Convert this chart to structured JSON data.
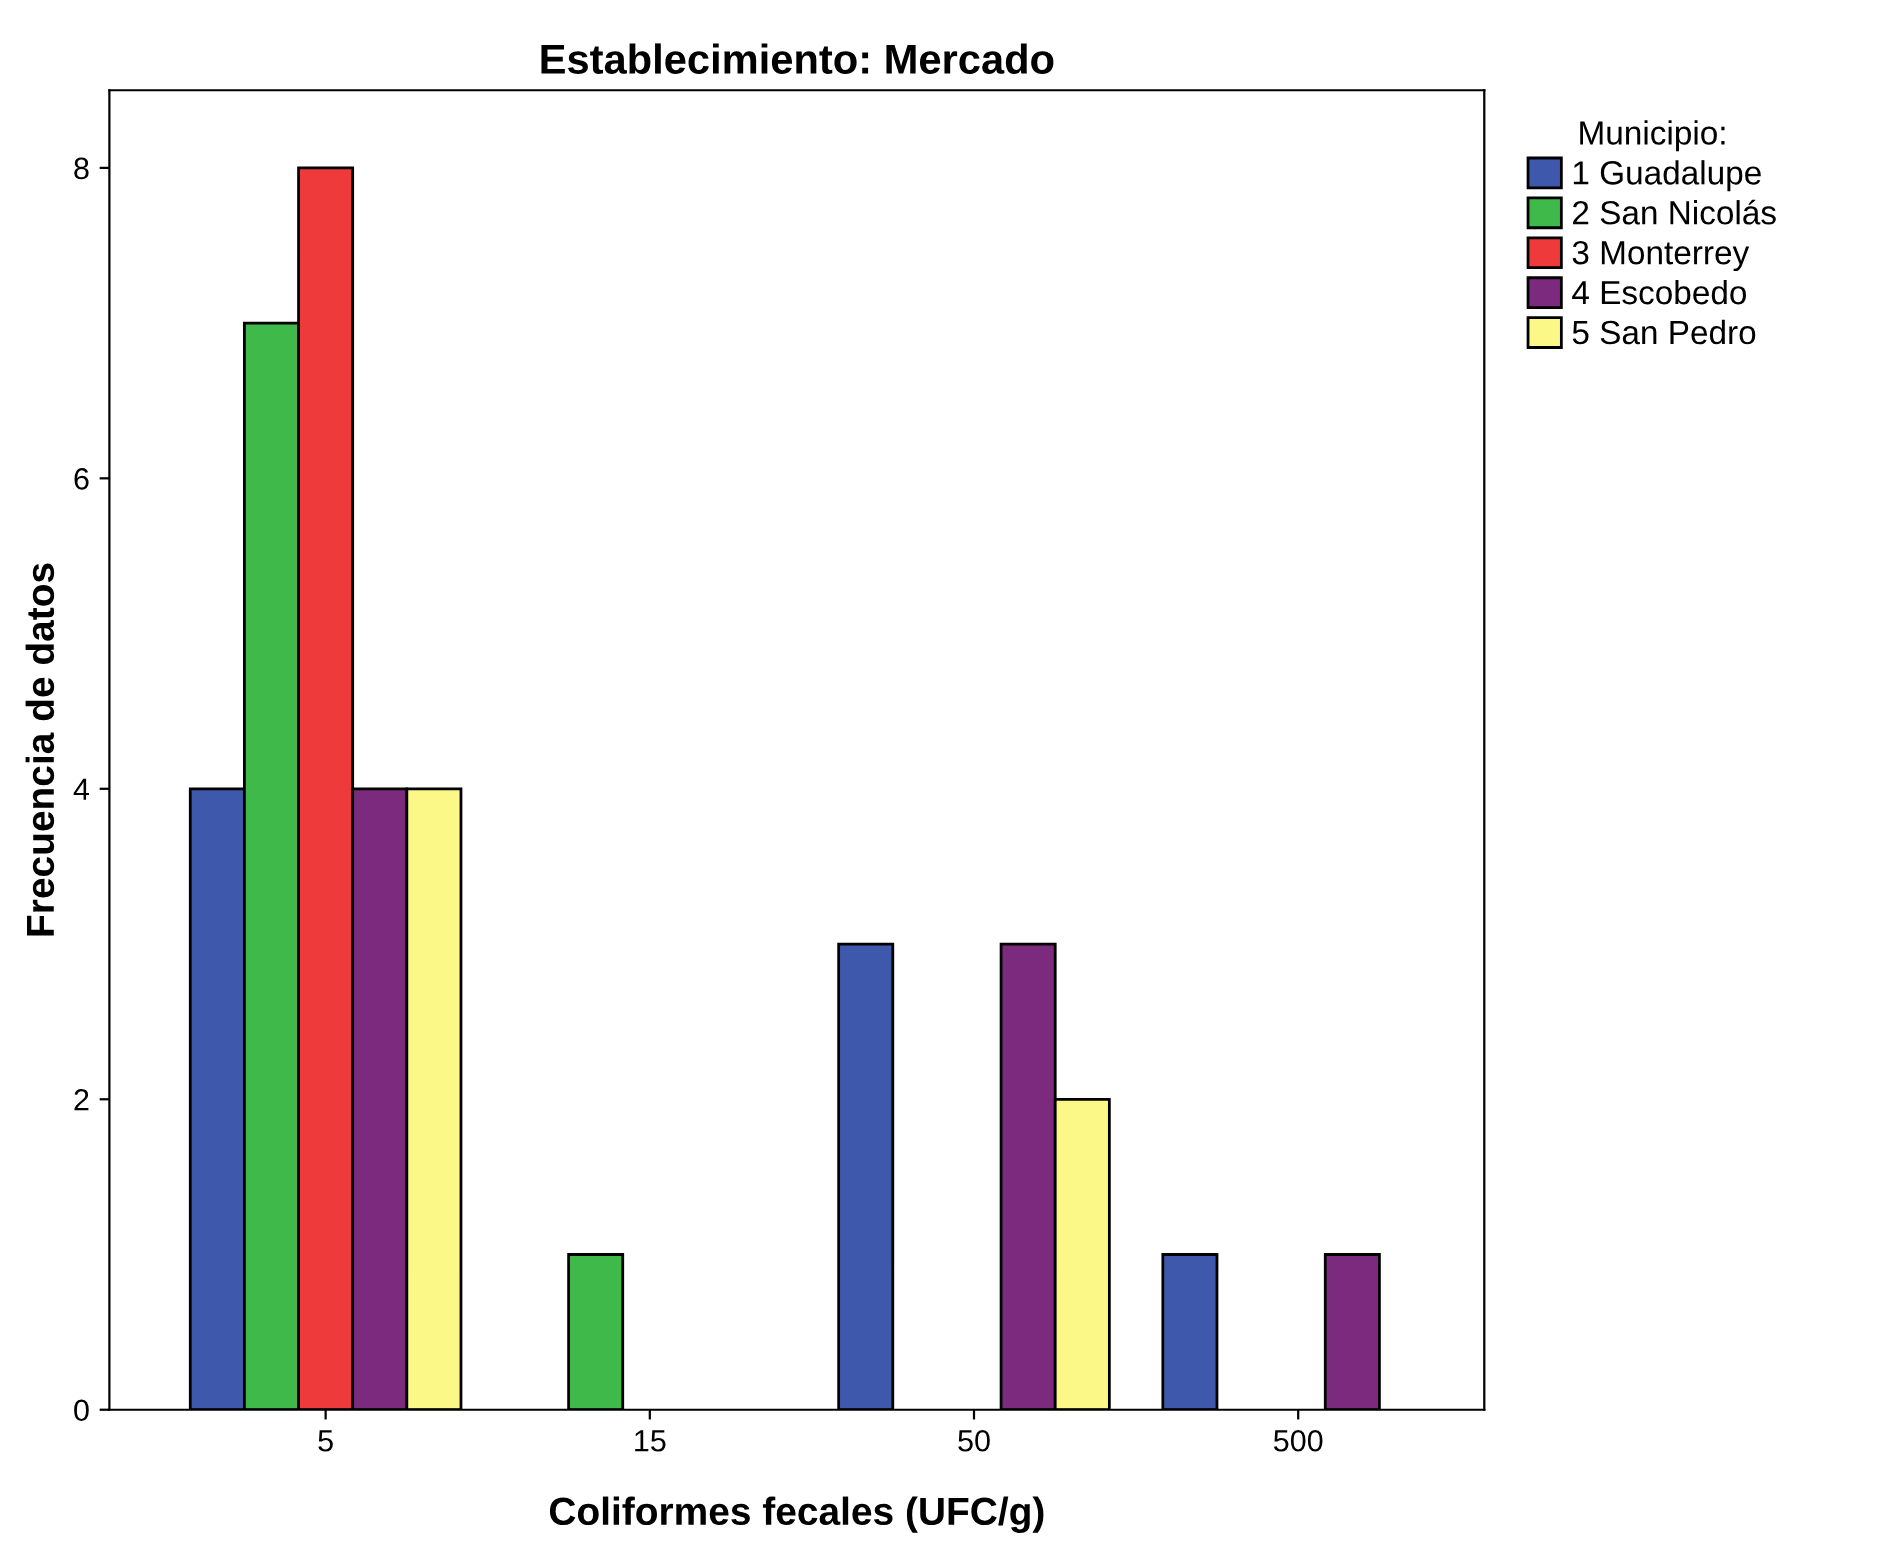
{
  "chart_data": {
    "type": "bar",
    "title": "Establecimiento: Mercado",
    "xlabel": "Coliformes fecales (UFC/g)",
    "ylabel": "Frecuencia de datos",
    "legend_title": "Municipio:",
    "categories": [
      "5",
      "15",
      "50",
      "500"
    ],
    "series": [
      {
        "name": "1 Guadalupe",
        "color": "#3e58ac",
        "values": [
          4,
          0,
          3,
          1
        ]
      },
      {
        "name": "2 San Nicolás",
        "color": "#3fb94a",
        "values": [
          7,
          1,
          0,
          0
        ]
      },
      {
        "name": "3 Monterrey",
        "color": "#ee3a3b",
        "values": [
          8,
          0,
          0,
          0
        ]
      },
      {
        "name": "4 Escobedo",
        "color": "#7b2a7e",
        "values": [
          4,
          0,
          3,
          1
        ]
      },
      {
        "name": "5 San Pedro",
        "color": "#fbf887",
        "values": [
          4,
          0,
          2,
          0
        ]
      }
    ],
    "ylim": [
      0,
      8.5
    ],
    "yticks": [
      0,
      2,
      4,
      6,
      8
    ],
    "grid": false,
    "legend": "top right"
  }
}
